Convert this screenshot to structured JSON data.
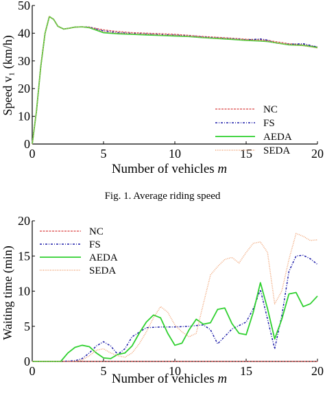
{
  "caption": "Fig. 1.   Average riding speed",
  "chart_data": [
    {
      "type": "line",
      "title": "",
      "xlabel": "Number of vehicles m",
      "ylabel": "Speed v₁ (km/h)",
      "xlim": [
        0,
        20
      ],
      "ylim": [
        0,
        50
      ],
      "xticks": [
        "0",
        "5",
        "10",
        "15",
        "20"
      ],
      "yticks": [
        "0",
        "10",
        "20",
        "30",
        "40",
        "50"
      ],
      "legend_position": "right",
      "grid": false,
      "series": [
        {
          "name": "NC",
          "color": "#e06060",
          "dash": "3,1.5",
          "x": [
            0,
            0.3,
            0.6,
            0.9,
            1.2,
            1.5,
            1.8,
            2.2,
            2.6,
            3,
            3.5,
            4,
            5,
            6,
            7,
            8,
            9,
            10,
            11,
            12,
            13,
            14,
            15,
            16,
            16.5,
            17,
            18,
            19,
            19.5,
            20
          ],
          "y": [
            0,
            12,
            28,
            40,
            46,
            45,
            42.5,
            41.5,
            41.8,
            42.2,
            42.3,
            42.2,
            41.2,
            40.6,
            40.2,
            40,
            39.8,
            39.6,
            39.2,
            38.8,
            38.5,
            38.2,
            37.8,
            37.6,
            37.4,
            37,
            36.2,
            35.8,
            35.4,
            35
          ]
        },
        {
          "name": "FS",
          "color": "#1a1aa8",
          "dash": "3,2,1,2",
          "x": [
            0,
            0.3,
            0.6,
            0.9,
            1.2,
            1.5,
            1.8,
            2.2,
            2.6,
            3,
            3.5,
            4,
            5,
            6,
            7,
            8,
            9,
            10,
            11,
            12,
            13,
            14,
            15,
            16,
            16.5,
            17,
            18,
            19,
            19.5,
            20
          ],
          "y": [
            0,
            12,
            28,
            40,
            46,
            45,
            42.5,
            41.5,
            41.8,
            42.2,
            42.3,
            42.2,
            40.8,
            40.2,
            39.9,
            39.7,
            39.5,
            39.3,
            39,
            38.6,
            38.3,
            38,
            37.6,
            37.9,
            37.5,
            36.5,
            36,
            36.2,
            35.6,
            35
          ]
        },
        {
          "name": "AEDA",
          "color": "#2ed02e",
          "dash": "",
          "x": [
            0,
            0.3,
            0.6,
            0.9,
            1.2,
            1.5,
            1.8,
            2.2,
            2.6,
            3,
            3.5,
            4,
            5,
            6,
            7,
            8,
            9,
            10,
            11,
            12,
            13,
            14,
            15,
            16,
            16.5,
            17,
            18,
            19,
            19.5,
            20
          ],
          "y": [
            0,
            12,
            28,
            40,
            46,
            45,
            42.5,
            41.5,
            41.8,
            42.2,
            42.3,
            42,
            40.2,
            39.8,
            39.6,
            39.4,
            39.2,
            39,
            38.8,
            38.4,
            38.1,
            37.8,
            37.4,
            37.2,
            37,
            36.6,
            35.8,
            35.6,
            35.2,
            34.8
          ]
        },
        {
          "name": "SEDA",
          "color": "#f0a070",
          "dash": "1,1.5",
          "x": [
            0,
            0.3,
            0.6,
            0.9,
            1.2,
            1.5,
            1.8,
            2.2,
            2.6,
            3,
            3.5,
            4,
            5,
            6,
            7,
            8,
            9,
            10,
            11,
            12,
            13,
            14,
            15,
            16,
            16.5,
            17,
            18,
            19,
            19.5,
            20
          ],
          "y": [
            0,
            12,
            28,
            40,
            46,
            45,
            42.5,
            41.5,
            41.8,
            42.2,
            42.3,
            42.1,
            40.5,
            40,
            39.8,
            39.6,
            39.4,
            39.2,
            38.9,
            38.5,
            38.2,
            37.9,
            37.5,
            37.3,
            37.1,
            36.6,
            35.9,
            35.5,
            35.1,
            34.6
          ]
        }
      ]
    },
    {
      "type": "line",
      "title": "",
      "xlabel": "Number of vehicles m",
      "ylabel": "Waiting time (min)",
      "xlim": [
        0,
        20
      ],
      "ylim": [
        0,
        20
      ],
      "xticks": [
        "0",
        "5",
        "10",
        "15",
        "20"
      ],
      "yticks": [
        "0",
        "5",
        "10",
        "15",
        "20"
      ],
      "legend_position": "top-left",
      "grid": false,
      "series": [
        {
          "name": "NC",
          "color": "#e06060",
          "dash": "3,1.5",
          "x": [
            0,
            20
          ],
          "y": [
            0,
            0
          ]
        },
        {
          "name": "FS",
          "color": "#1a1aa8",
          "dash": "3,2,1,2",
          "x": [
            0,
            1,
            2,
            3,
            3.5,
            4,
            4.5,
            5,
            5.5,
            6,
            6.5,
            7,
            8,
            9,
            10,
            11,
            12,
            12.5,
            13,
            14,
            15,
            15.5,
            16,
            16.5,
            17,
            17.5,
            18,
            18.5,
            19,
            19.5,
            20
          ],
          "y": [
            0,
            0,
            0,
            0.1,
            0.4,
            1.2,
            2.2,
            2.8,
            2.2,
            1,
            1.8,
            3.5,
            4.8,
            4.9,
            4.9,
            5,
            5.2,
            4.5,
            2.5,
            4.6,
            5.6,
            7.5,
            10.2,
            6,
            1.8,
            6.5,
            12.8,
            15,
            15.1,
            14.6,
            13.8
          ]
        },
        {
          "name": "AEDA",
          "color": "#2ed02e",
          "dash": "",
          "x": [
            0,
            1,
            2,
            2.5,
            3,
            3.5,
            4,
            4.5,
            5,
            5.5,
            6,
            6.5,
            7,
            7.5,
            8,
            8.5,
            9,
            9.5,
            10,
            10.5,
            11,
            11.5,
            12,
            12.5,
            13,
            13.5,
            14,
            14.5,
            15,
            15.5,
            16,
            16.5,
            17,
            17.5,
            18,
            18.5,
            19,
            19.5,
            20
          ],
          "y": [
            0,
            0,
            0,
            1.2,
            2,
            2.3,
            2.1,
            1.2,
            0.5,
            0.4,
            1,
            1.2,
            2.2,
            4,
            5.6,
            6.6,
            6.2,
            4,
            2.3,
            2.6,
            4.5,
            6,
            5.3,
            5.5,
            7.4,
            7.6,
            5.4,
            4,
            3.8,
            7,
            11.2,
            7.5,
            3.2,
            6,
            9.6,
            9.8,
            7.8,
            8.2,
            9.3
          ]
        },
        {
          "name": "SEDA",
          "color": "#f0a070",
          "dash": "1,1.5",
          "x": [
            0,
            1,
            2,
            3,
            3.5,
            4,
            4.5,
            5,
            5.5,
            6,
            6.5,
            7,
            7.5,
            8,
            8.5,
            9,
            9.5,
            10,
            10.5,
            11,
            11.5,
            12,
            12.5,
            13,
            13.5,
            14,
            14.5,
            15,
            15.5,
            16,
            16.5,
            17,
            17.5,
            18,
            18.5,
            19,
            19.5,
            20
          ],
          "y": [
            0,
            0,
            0,
            0,
            0.2,
            0.8,
            1.6,
            1.8,
            1.2,
            0.8,
            0.6,
            1.2,
            2.5,
            4.2,
            6.2,
            7.8,
            7,
            5.2,
            4.2,
            3.5,
            4,
            8.2,
            12.3,
            13.5,
            14.5,
            14.8,
            14,
            15.5,
            16.8,
            17,
            15.5,
            8.2,
            10,
            14.5,
            18.2,
            17.8,
            17.2,
            17.3
          ]
        }
      ]
    }
  ]
}
